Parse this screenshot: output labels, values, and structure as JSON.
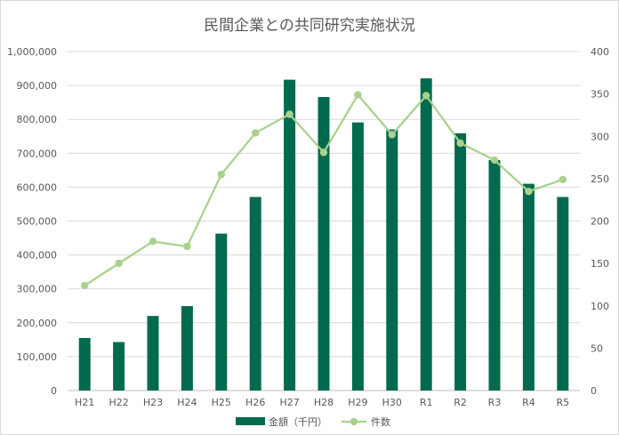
{
  "chart_data": {
    "type": "bar+line",
    "title": "民間企業との共同研究実施状況",
    "categories": [
      "H21",
      "H22",
      "H23",
      "H24",
      "H25",
      "H26",
      "H27",
      "H28",
      "H29",
      "H30",
      "R1",
      "R2",
      "R3",
      "R4",
      "R5"
    ],
    "series": [
      {
        "name": "金額（千円）",
        "type": "bar",
        "axis": "left",
        "color": "#006a4e",
        "values": [
          155000,
          143000,
          220000,
          249000,
          463000,
          571000,
          917000,
          866000,
          791000,
          770000,
          921000,
          759000,
          680000,
          610000,
          571000
        ]
      },
      {
        "name": "件数",
        "type": "line",
        "axis": "right",
        "color": "#a9d18e",
        "values": [
          124,
          150,
          176,
          170,
          255,
          304,
          326,
          281,
          349,
          302,
          348,
          292,
          272,
          235,
          249
        ]
      }
    ],
    "y_left": {
      "min": 0,
      "max": 1000000,
      "step": 100000
    },
    "y_right": {
      "min": 0,
      "max": 400,
      "step": 50
    },
    "grid": true,
    "legend": "bottom"
  }
}
